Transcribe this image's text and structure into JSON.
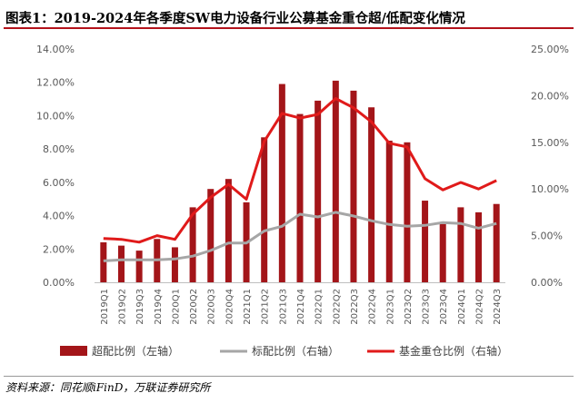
{
  "title": "图表1：2019-2024年各季度SW电力设备行业公募基金重仓超/低配变化情况",
  "source": "资料来源：同花顺iFinD，万联证券研究所",
  "colors": {
    "bar": "#a31519",
    "benchmark": "#a6a6a6",
    "fund": "#e01a1a",
    "accent": "#b3121a"
  },
  "chart_data": {
    "type": "bar",
    "categories": [
      "2019Q1",
      "2019Q2",
      "2019Q3",
      "2019Q4",
      "2020Q1",
      "2020Q2",
      "2020Q3",
      "2020Q4",
      "2021Q1",
      "2021Q2",
      "2021Q3",
      "2021Q4",
      "2022Q1",
      "2022Q2",
      "2022Q3",
      "2022Q4",
      "2023Q1",
      "2023Q2",
      "2023Q3",
      "2023Q4",
      "2024Q1",
      "2024Q2",
      "2024Q3"
    ],
    "left_axis": {
      "ylim": [
        0,
        14
      ],
      "ticks": [
        "0.00%",
        "2.00%",
        "4.00%",
        "6.00%",
        "8.00%",
        "10.00%",
        "12.00%",
        "14.00%"
      ]
    },
    "right_axis": {
      "ylim": [
        0,
        25
      ],
      "ticks": [
        "0.00%",
        "5.00%",
        "10.00%",
        "15.00%",
        "20.00%",
        "25.00%"
      ]
    },
    "grid": false,
    "legend_position": "bottom",
    "series": [
      {
        "name": "超配比例（左轴）",
        "type": "bar",
        "axis": "left",
        "values": [
          2.4,
          2.2,
          1.9,
          2.6,
          2.1,
          4.5,
          5.6,
          6.2,
          4.8,
          8.7,
          11.9,
          10.1,
          10.9,
          12.1,
          11.5,
          10.5,
          8.5,
          8.4,
          4.9,
          3.5,
          4.5,
          4.2,
          4.7
        ]
      },
      {
        "name": "标配比例（右轴）",
        "type": "line",
        "axis": "right",
        "values": [
          2.3,
          2.4,
          2.4,
          2.4,
          2.5,
          2.8,
          3.4,
          4.2,
          4.2,
          5.5,
          6.0,
          7.3,
          7.0,
          7.5,
          7.1,
          6.6,
          6.2,
          6.0,
          6.1,
          6.4,
          6.3,
          5.8,
          6.3
        ]
      },
      {
        "name": "基金重仓比例（右轴）",
        "type": "line",
        "axis": "right",
        "values": [
          4.7,
          4.6,
          4.3,
          5.0,
          4.6,
          7.3,
          9.1,
          10.5,
          8.9,
          15.1,
          18.1,
          17.6,
          18.0,
          19.7,
          18.7,
          17.2,
          14.9,
          14.5,
          11.1,
          9.9,
          10.7,
          10.0,
          10.9
        ]
      }
    ]
  }
}
